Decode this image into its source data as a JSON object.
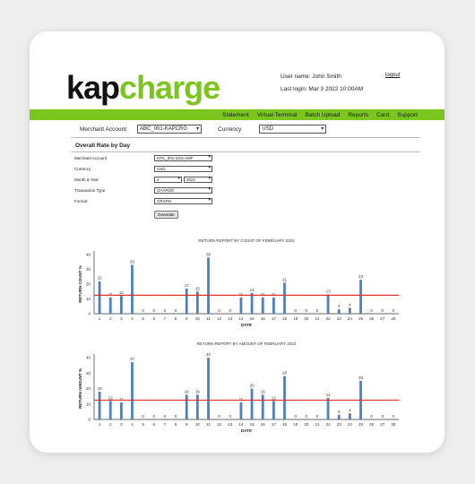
{
  "brand": {
    "logo_part1": "kap",
    "logo_part2": "charge"
  },
  "header": {
    "user_name": "User name: John Smith",
    "last_login": "Last login: Mar 3 2022 10:00AM",
    "logout": "logout"
  },
  "nav": {
    "items": [
      "Statement",
      "Virtual Terminal",
      "Batch Upload",
      "Reports",
      "Card",
      "Support"
    ]
  },
  "account_bar": {
    "merchant_label": "Merchant Account",
    "merchant_value": "ABC_001-KAPCRG",
    "currency_label": "Currency",
    "currency_value": "USD"
  },
  "report": {
    "title": "Overall Rate by Day",
    "fields": [
      {
        "label": "Merchant Account",
        "value": "KPC_001-SSS-AMF"
      },
      {
        "label": "Currency",
        "value": "USD"
      },
      {
        "label": "Month & Year",
        "value": "2",
        "value2": "2022"
      },
      {
        "label": "Transaction Type",
        "value": "CHARGE"
      },
      {
        "label": "Format",
        "value": "GRAPH"
      }
    ],
    "generate_label": "Generate"
  },
  "colors": {
    "bar": "#4f7fc0",
    "threshold": "#e03030",
    "brand_green": "#7ac61f"
  },
  "chart_data": [
    {
      "type": "bar",
      "title": "RETURN REPORT BY COUNT OF FEBRUARY 2022",
      "xlabel": "DATE",
      "ylabel": "RETURN COUNT %",
      "ylim": [
        0,
        40
      ],
      "yticks": [
        0,
        10,
        20,
        30,
        40
      ],
      "categories": [
        "1",
        "2",
        "3",
        "4",
        "5",
        "6",
        "7",
        "8",
        "9",
        "10",
        "11",
        "12",
        "13",
        "14",
        "15",
        "16",
        "17",
        "18",
        "19",
        "20",
        "21",
        "22",
        "23",
        "24",
        "25",
        "26",
        "27",
        "28"
      ],
      "values": [
        22,
        11,
        12,
        33,
        0,
        0,
        0,
        0,
        17,
        15,
        38,
        0,
        0,
        11,
        14,
        11,
        11,
        21,
        0,
        0,
        0,
        13,
        3,
        4,
        23,
        0,
        0,
        0
      ],
      "threshold": 12.5
    },
    {
      "type": "bar",
      "title": "RETURN REPORT BY AMOUNT OF FEBRUARY 2022",
      "xlabel": "DATE",
      "ylabel": "RETURN AMOUNT %",
      "ylim": [
        0,
        40
      ],
      "yticks": [
        0,
        10,
        20,
        30,
        40
      ],
      "categories": [
        "1",
        "2",
        "3",
        "4",
        "5",
        "6",
        "7",
        "8",
        "9",
        "10",
        "11",
        "12",
        "13",
        "14",
        "15",
        "16",
        "17",
        "18",
        "19",
        "20",
        "21",
        "22",
        "23",
        "24",
        "25",
        "26",
        "27",
        "28"
      ],
      "values": [
        18,
        12,
        11,
        37,
        0,
        0,
        0,
        0,
        16,
        16,
        40,
        0,
        0,
        11,
        20,
        16,
        12,
        28,
        0,
        0,
        0,
        14,
        3,
        4,
        25,
        0,
        0,
        0
      ],
      "threshold": 12.5
    }
  ]
}
